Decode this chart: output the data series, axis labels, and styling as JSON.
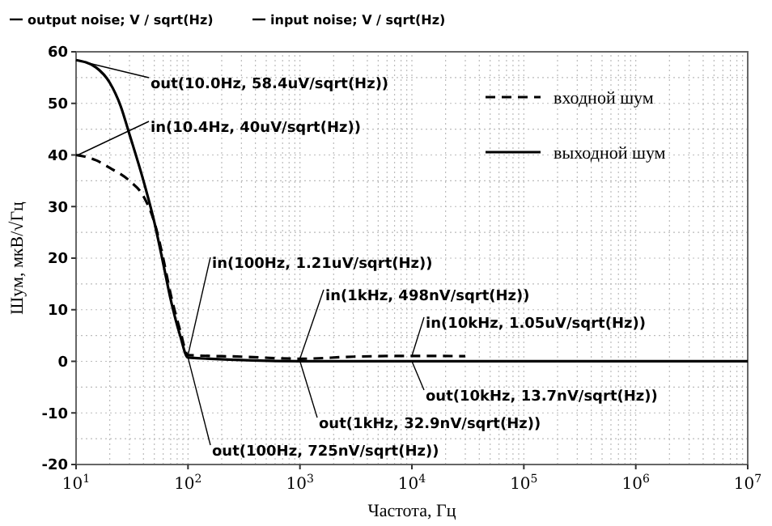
{
  "chart_data": {
    "type": "line",
    "xlabel": "Частота, Гц",
    "ylabel": "Шум, мкВ/√Гц",
    "log": "x",
    "grid": true,
    "legend": "top right",
    "xlim": [
      10,
      10000000
    ],
    "ylim": [
      -20,
      60
    ],
    "xticks": [
      {
        "value": 10,
        "label": "10$^{1}$"
      },
      {
        "value": 100,
        "label": "10$^{2}$"
      },
      {
        "value": 1000,
        "label": "10$^{3}$"
      },
      {
        "value": 10000,
        "label": "10$^{4}$"
      },
      {
        "value": 100000,
        "label": "10$^{5}$"
      },
      {
        "value": 1000000,
        "label": "10$^{6}$"
      },
      {
        "value": 10000000,
        "label": "10$^{7}$"
      }
    ],
    "yticks": [
      -20,
      -10,
      0,
      10,
      20,
      30,
      40,
      50,
      60
    ],
    "series": [
      {
        "name": "входной шум",
        "color": "#000000",
        "line_style": "dashed",
        "x": [
          10,
          15,
          20,
          30,
          40,
          50,
          60,
          70,
          85,
          100,
          300,
          1000,
          3000,
          10000,
          30000
        ],
        "values": [
          40,
          39,
          37.5,
          35,
          32,
          27,
          20,
          13,
          6,
          1.21,
          0.9,
          0.498,
          0.9,
          1.05,
          1.0
        ]
      },
      {
        "name": "выходной шум",
        "color": "#000000",
        "line_style": "solid",
        "x": [
          10,
          15,
          20,
          25,
          30,
          40,
          50,
          60,
          70,
          85,
          100,
          1000,
          10000,
          10000000
        ],
        "values": [
          58.4,
          57,
          54,
          49.5,
          44,
          35,
          27,
          19,
          12,
          5,
          0.725,
          0.0329,
          0.0137,
          0.01
        ]
      }
    ],
    "annotations": [
      "output noise; V / sqrt(Hz)",
      "input noise; V / sqrt(Hz)",
      {
        "text": "out(10.0Hz, 58.4uV/sqrt(Hz))",
        "x": 10,
        "y": 58.4
      },
      {
        "text": "in(10.4Hz, 40uV/sqrt(Hz))",
        "x": 10.4,
        "y": 40
      },
      {
        "text": "in(100Hz, 1.21uV/sqrt(Hz))",
        "x": 100,
        "y": 1.21
      },
      {
        "text": "in(1kHz, 498nV/sqrt(Hz))",
        "x": 1000,
        "y": 0.498
      },
      {
        "text": "in(10kHz, 1.05uV/sqrt(Hz))",
        "x": 10000,
        "y": 1.05
      },
      {
        "text": "out(10kHz, 13.7nV/sqrt(Hz))",
        "x": 10000,
        "y": 0.0137
      },
      {
        "text": "out(1kHz, 32.9nV/sqrt(Hz))",
        "x": 1000,
        "y": 0.0329
      },
      {
        "text": "out(100Hz, 725nV/sqrt(Hz))",
        "x": 100,
        "y": 0.725
      }
    ]
  }
}
